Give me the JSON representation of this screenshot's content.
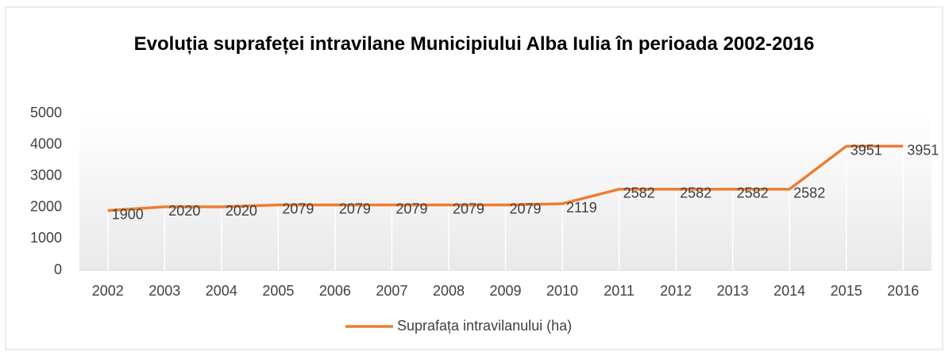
{
  "chart_data": {
    "type": "line",
    "title": "Evoluția suprafeței intravilane Municipiului Alba Iulia în perioada 2002-2016",
    "categories": [
      "2002",
      "2003",
      "2004",
      "2005",
      "2006",
      "2007",
      "2008",
      "2009",
      "2010",
      "2011",
      "2012",
      "2013",
      "2014",
      "2015",
      "2016"
    ],
    "series": [
      {
        "name": "Suprafața intravilanului (ha)",
        "color": "#ed7d31",
        "values": [
          1900,
          2020,
          2020,
          2079,
          2079,
          2079,
          2079,
          2079,
          2119,
          2582,
          2582,
          2582,
          2582,
          3951,
          3951
        ]
      }
    ],
    "ylim": [
      0,
      5000
    ],
    "yticks": [
      0,
      1000,
      2000,
      3000,
      4000,
      5000
    ],
    "legend": "bottom"
  }
}
